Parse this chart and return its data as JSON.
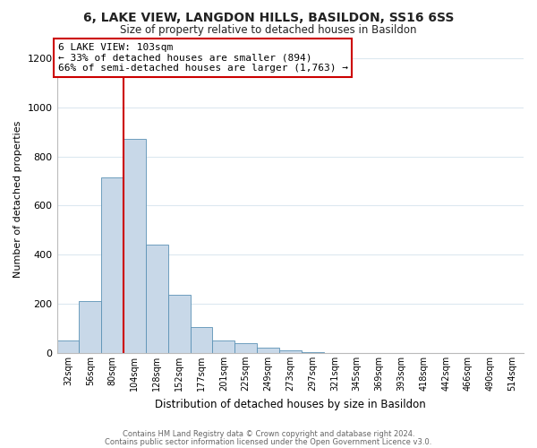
{
  "title": "6, LAKE VIEW, LANGDON HILLS, BASILDON, SS16 6SS",
  "subtitle": "Size of property relative to detached houses in Basildon",
  "xlabel": "Distribution of detached houses by size in Basildon",
  "ylabel": "Number of detached properties",
  "bar_labels": [
    "32sqm",
    "56sqm",
    "80sqm",
    "104sqm",
    "128sqm",
    "152sqm",
    "177sqm",
    "201sqm",
    "225sqm",
    "249sqm",
    "273sqm",
    "297sqm",
    "321sqm",
    "345sqm",
    "369sqm",
    "393sqm",
    "418sqm",
    "442sqm",
    "466sqm",
    "490sqm",
    "514sqm"
  ],
  "bar_values": [
    50,
    210,
    715,
    870,
    440,
    235,
    105,
    50,
    40,
    20,
    10,
    5,
    0,
    0,
    0,
    0,
    0,
    0,
    0,
    0,
    0
  ],
  "bar_color": "#c8d8e8",
  "bar_edge_color": "#5b92b5",
  "property_line_color": "#cc0000",
  "property_line_index": 3,
  "ylim": [
    0,
    1250
  ],
  "yticks": [
    0,
    200,
    400,
    600,
    800,
    1000,
    1200
  ],
  "annotation_title": "6 LAKE VIEW: 103sqm",
  "annotation_line1": "← 33% of detached houses are smaller (894)",
  "annotation_line2": "66% of semi-detached houses are larger (1,763) →",
  "annotation_box_color": "#ffffff",
  "annotation_box_edge": "#cc0000",
  "footer_line1": "Contains HM Land Registry data © Crown copyright and database right 2024.",
  "footer_line2": "Contains public sector information licensed under the Open Government Licence v3.0.",
  "background_color": "#ffffff",
  "grid_color": "#dce8f0",
  "title_fontsize": 10,
  "subtitle_fontsize": 8.5,
  "ylabel_fontsize": 8,
  "xlabel_fontsize": 8.5
}
